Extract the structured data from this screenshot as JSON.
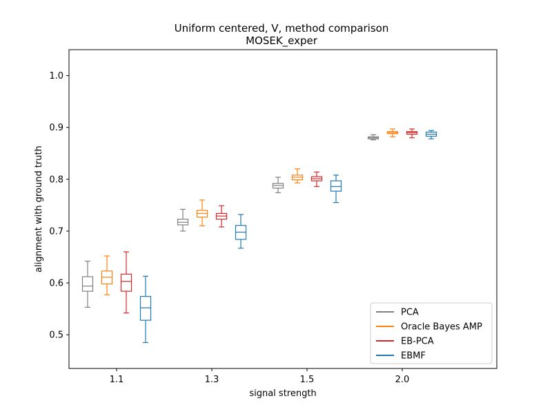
{
  "chart_data": {
    "type": "box",
    "title_line1": "Uniform centered, V, method comparison",
    "title_line2": "MOSEK_exper",
    "xlabel": "signal strength",
    "ylabel": "alignment with ground truth",
    "categories": [
      "1.1",
      "1.3",
      "1.5",
      "2.0"
    ],
    "ylim": [
      0.435,
      1.05
    ],
    "yticks": [
      "0.5",
      "0.6",
      "0.7",
      "0.8",
      "0.9",
      "1.0"
    ],
    "grid": false,
    "legend_position": "bottom-right",
    "series": [
      {
        "name": "PCA",
        "color": "#7f7f7f",
        "boxes": [
          {
            "whislo": 0.553,
            "q1": 0.584,
            "med": 0.594,
            "q3": 0.612,
            "whishi": 0.642
          },
          {
            "whislo": 0.7,
            "q1": 0.712,
            "med": 0.717,
            "q3": 0.723,
            "whishi": 0.742
          },
          {
            "whislo": 0.774,
            "q1": 0.783,
            "med": 0.788,
            "q3": 0.792,
            "whishi": 0.804
          },
          {
            "whislo": 0.876,
            "q1": 0.878,
            "med": 0.88,
            "q3": 0.882,
            "whishi": 0.886
          }
        ]
      },
      {
        "name": "Oracle Bayes AMP",
        "color": "#ff7f0e",
        "boxes": [
          {
            "whislo": 0.577,
            "q1": 0.598,
            "med": 0.611,
            "q3": 0.623,
            "whishi": 0.652
          },
          {
            "whislo": 0.71,
            "q1": 0.727,
            "med": 0.734,
            "q3": 0.74,
            "whishi": 0.76
          },
          {
            "whislo": 0.793,
            "q1": 0.799,
            "med": 0.804,
            "q3": 0.808,
            "whishi": 0.82
          },
          {
            "whislo": 0.882,
            "q1": 0.888,
            "med": 0.89,
            "q3": 0.892,
            "whishi": 0.897
          }
        ]
      },
      {
        "name": "EB-PCA",
        "color": "#d62728",
        "boxes": [
          {
            "whislo": 0.542,
            "q1": 0.584,
            "med": 0.603,
            "q3": 0.617,
            "whishi": 0.66
          },
          {
            "whislo": 0.708,
            "q1": 0.723,
            "med": 0.729,
            "q3": 0.734,
            "whishi": 0.749
          },
          {
            "whislo": 0.786,
            "q1": 0.797,
            "med": 0.801,
            "q3": 0.805,
            "whishi": 0.814
          },
          {
            "whislo": 0.88,
            "q1": 0.887,
            "med": 0.89,
            "q3": 0.892,
            "whishi": 0.897
          }
        ]
      },
      {
        "name": "EBMF",
        "color": "#1f77b4",
        "boxes": [
          {
            "whislo": 0.485,
            "q1": 0.528,
            "med": 0.552,
            "q3": 0.574,
            "whishi": 0.613
          },
          {
            "whislo": 0.667,
            "q1": 0.684,
            "med": 0.698,
            "q3": 0.711,
            "whishi": 0.732
          },
          {
            "whislo": 0.755,
            "q1": 0.777,
            "med": 0.786,
            "q3": 0.797,
            "whishi": 0.808
          },
          {
            "whislo": 0.878,
            "q1": 0.883,
            "med": 0.887,
            "q3": 0.891,
            "whishi": 0.894
          }
        ]
      }
    ]
  }
}
